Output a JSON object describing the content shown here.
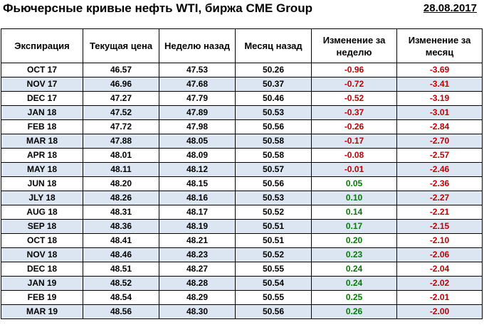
{
  "header": {
    "title": "Фьючерсные кривые нефть WTI, биржа CME Group",
    "date": "28.08.2017"
  },
  "columns": [
    "Экспирация",
    "Текущая цена",
    "Неделю назад",
    "Месяц назад",
    "Изменение за неделю",
    "Изменение за месяц"
  ],
  "rows": [
    {
      "expiration": "OCT 17",
      "current": "46.57",
      "week_ago": "47.53",
      "month_ago": "50.26",
      "week_change": "-0.96",
      "month_change": "-3.69"
    },
    {
      "expiration": "NOV 17",
      "current": "46.96",
      "week_ago": "47.68",
      "month_ago": "50.37",
      "week_change": "-0.72",
      "month_change": "-3.41"
    },
    {
      "expiration": "DEC 17",
      "current": "47.27",
      "week_ago": "47.79",
      "month_ago": "50.46",
      "week_change": "-0.52",
      "month_change": "-3.19"
    },
    {
      "expiration": "JAN 18",
      "current": "47.52",
      "week_ago": "47.89",
      "month_ago": "50.53",
      "week_change": "-0.37",
      "month_change": "-3.01"
    },
    {
      "expiration": "FEB 18",
      "current": "47.72",
      "week_ago": "47.98",
      "month_ago": "50.56",
      "week_change": "-0.26",
      "month_change": "-2.84"
    },
    {
      "expiration": "MAR 18",
      "current": "47.88",
      "week_ago": "48.05",
      "month_ago": "50.58",
      "week_change": "-0.17",
      "month_change": "-2.70"
    },
    {
      "expiration": "APR 18",
      "current": "48.01",
      "week_ago": "48.09",
      "month_ago": "50.58",
      "week_change": "-0.08",
      "month_change": "-2.57"
    },
    {
      "expiration": "MAY 18",
      "current": "48.11",
      "week_ago": "48.12",
      "month_ago": "50.57",
      "week_change": "-0.01",
      "month_change": "-2.46"
    },
    {
      "expiration": "JUN 18",
      "current": "48.20",
      "week_ago": "48.15",
      "month_ago": "50.56",
      "week_change": "0.05",
      "month_change": "-2.36"
    },
    {
      "expiration": "JLY 18",
      "current": "48.26",
      "week_ago": "48.16",
      "month_ago": "50.53",
      "week_change": "0.10",
      "month_change": "-2.27"
    },
    {
      "expiration": "AUG 18",
      "current": "48.31",
      "week_ago": "48.17",
      "month_ago": "50.52",
      "week_change": "0.14",
      "month_change": "-2.21"
    },
    {
      "expiration": "SEP 18",
      "current": "48.36",
      "week_ago": "48.19",
      "month_ago": "50.51",
      "week_change": "0.17",
      "month_change": "-2.15"
    },
    {
      "expiration": "OCT 18",
      "current": "48.41",
      "week_ago": "48.21",
      "month_ago": "50.51",
      "week_change": "0.20",
      "month_change": "-2.10"
    },
    {
      "expiration": "NOV 18",
      "current": "48.46",
      "week_ago": "48.23",
      "month_ago": "50.52",
      "week_change": "0.23",
      "month_change": "-2.06"
    },
    {
      "expiration": "DEC 18",
      "current": "48.51",
      "week_ago": "48.27",
      "month_ago": "50.55",
      "week_change": "0.24",
      "month_change": "-2.04"
    },
    {
      "expiration": "JAN 19",
      "current": "48.52",
      "week_ago": "48.28",
      "month_ago": "50.54",
      "week_change": "0.24",
      "month_change": "-2.02"
    },
    {
      "expiration": "FEB 19",
      "current": "48.54",
      "week_ago": "48.29",
      "month_ago": "50.55",
      "week_change": "0.25",
      "month_change": "-2.01"
    },
    {
      "expiration": "MAR 19",
      "current": "48.56",
      "week_ago": "48.30",
      "month_ago": "50.56",
      "week_change": "0.26",
      "month_change": "-2.00"
    }
  ],
  "colors": {
    "negative": "#c00000",
    "positive": "#008000",
    "row_shade": "#dce6f2"
  }
}
